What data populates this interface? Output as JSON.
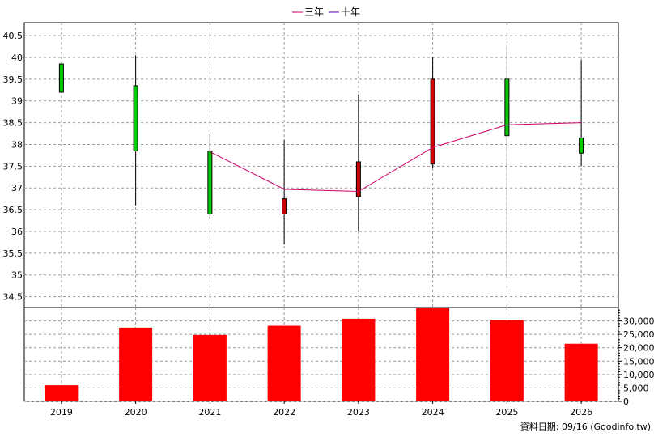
{
  "chart_data": {
    "type": "candlestick",
    "categories": [
      "2019",
      "2020",
      "2021",
      "2022",
      "2023",
      "2024",
      "2025",
      "2026"
    ],
    "legend": [
      {
        "name": "三年",
        "color": "#cc0066"
      },
      {
        "name": "十年",
        "color": "#5500aa"
      }
    ],
    "price": {
      "ylim": [
        34.25,
        40.8
      ],
      "ticks": [
        "34.5",
        "35",
        "35.5",
        "36",
        "36.5",
        "37",
        "37.5",
        "38",
        "38.5",
        "39",
        "39.5",
        "40",
        "40.5"
      ],
      "candles": [
        {
          "year": "2019",
          "open": 39.2,
          "close": 39.85,
          "high": 39.85,
          "low": 39.2,
          "color": "#00cc00"
        },
        {
          "year": "2020",
          "open": 37.85,
          "close": 39.35,
          "high": 40.05,
          "low": 36.6,
          "color": "#00cc00"
        },
        {
          "year": "2021",
          "open": 36.4,
          "close": 37.85,
          "high": 38.25,
          "low": 36.3,
          "color": "#00cc00"
        },
        {
          "year": "2022",
          "open": 36.75,
          "close": 36.4,
          "high": 38.1,
          "low": 35.7,
          "color": "#cc0000"
        },
        {
          "year": "2023",
          "open": 37.6,
          "close": 36.8,
          "high": 39.15,
          "low": 36.0,
          "color": "#cc0000"
        },
        {
          "year": "2024",
          "open": 39.5,
          "close": 37.55,
          "high": 40.0,
          "low": 37.45,
          "color": "#cc0000"
        },
        {
          "year": "2025",
          "open": 38.2,
          "close": 39.5,
          "high": 40.3,
          "low": 34.95,
          "color": "#00cc00"
        },
        {
          "year": "2026",
          "open": 37.8,
          "close": 38.15,
          "high": 39.95,
          "low": 37.5,
          "color": "#00cc00"
        }
      ],
      "ma3": {
        "name": "三年",
        "x": [
          "2021",
          "2022",
          "2023",
          "2024",
          "2025",
          "2026"
        ],
        "values": [
          37.83,
          36.97,
          36.92,
          37.93,
          38.45,
          38.5
        ]
      }
    },
    "volume": {
      "ylim": [
        0,
        35000
      ],
      "ticks": [
        "0",
        "5,000",
        "10,000",
        "15,000",
        "20,000",
        "25,000",
        "30,000"
      ],
      "tick_values": [
        0,
        5000,
        10000,
        15000,
        20000,
        25000,
        30000
      ],
      "values": [
        6000,
        27500,
        24800,
        28200,
        30800,
        34800,
        30300,
        21500
      ],
      "color": "#ff0000"
    },
    "grid": true,
    "footer": "資料日期: 09/16  (Goodinfo.tw)"
  }
}
